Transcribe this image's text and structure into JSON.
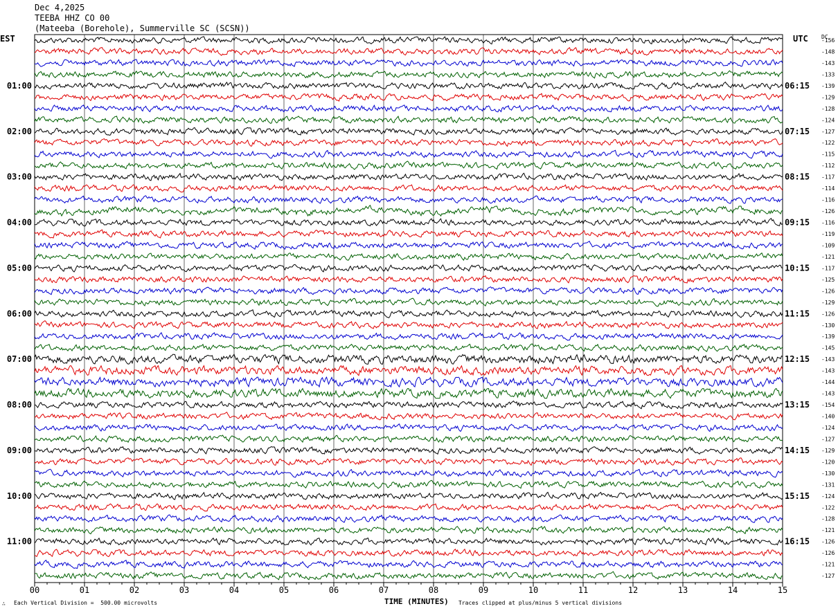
{
  "header": {
    "date": "Dec 4,2025",
    "station": "TEEBA HHZ CO 00",
    "location": "(Mateeba (Borehole), Summerville SC (SCSN))"
  },
  "tz_left": "EST",
  "tz_right": "UTC",
  "dc_label": "DC",
  "footer": {
    "scale": "Each Vertical Division =  500.00 microvolts",
    "axis_title": "TIME (MINUTES)",
    "clip_note": "Traces clipped at plus/minus 5 vertical divisions",
    "icon": "∴"
  },
  "chart_data": {
    "type": "line",
    "title": "TEEBA HHZ CO 00",
    "xlabel": "TIME (MINUTES)",
    "xlim": [
      0,
      15
    ],
    "x_ticks": [
      "00",
      "01",
      "02",
      "03",
      "04",
      "05",
      "06",
      "07",
      "08",
      "09",
      "10",
      "11",
      "12",
      "13",
      "14",
      "15"
    ],
    "left_hour_labels": [
      "01:00",
      "02:00",
      "03:00",
      "04:00",
      "05:00",
      "06:00",
      "07:00",
      "08:00",
      "09:00",
      "10:00",
      "11:00"
    ],
    "right_hour_labels": [
      "06:15",
      "07:15",
      "08:15",
      "09:15",
      "10:15",
      "11:15",
      "12:15",
      "13:15",
      "14:15",
      "15:15",
      "16:15"
    ],
    "trace_colors": [
      "#000000",
      "#e00000",
      "#0000d0",
      "#006000"
    ],
    "trace_count": 48,
    "dc_offsets": [
      -156,
      -148,
      -143,
      -133,
      -139,
      -129,
      -128,
      -124,
      -127,
      -122,
      -115,
      -112,
      -117,
      -114,
      -116,
      -126,
      -116,
      -119,
      -109,
      -121,
      -117,
      -125,
      -126,
      -129,
      -126,
      -130,
      -139,
      -145,
      -143,
      -143,
      -144,
      -143,
      -154,
      -140,
      -124,
      -127,
      -129,
      -120,
      -130,
      -131,
      -124,
      -122,
      -128,
      -121,
      -126,
      -126,
      -121,
      -127
    ]
  }
}
